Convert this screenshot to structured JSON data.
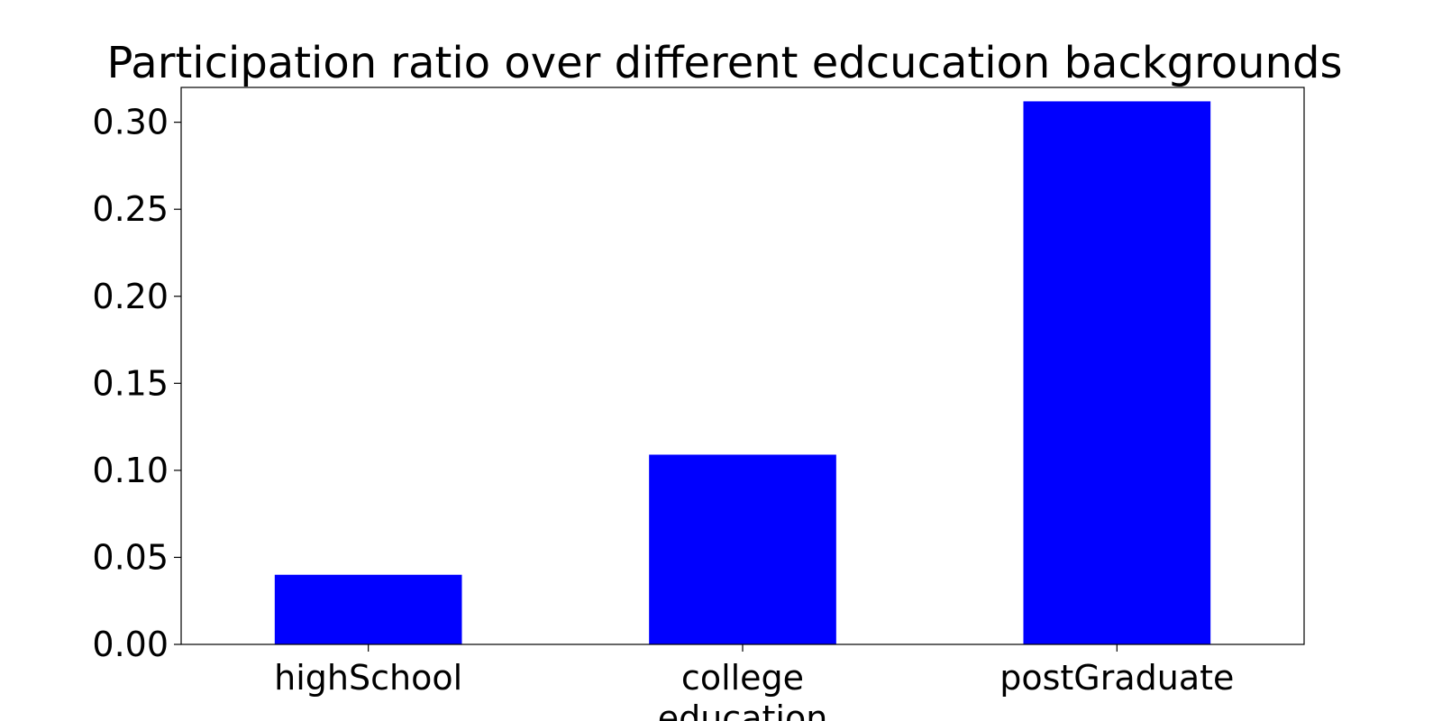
{
  "chart_data": {
    "type": "bar",
    "title": "Participation ratio over different edcucation backgrounds",
    "xlabel": "",
    "ylabel": "",
    "categories": [
      [
        "highSchool"
      ],
      [
        "college",
        "education"
      ],
      [
        "postGraduate"
      ]
    ],
    "values": [
      0.04,
      0.109,
      0.312
    ],
    "ylim": [
      0,
      0.32
    ],
    "yticks": [
      0.0,
      0.05,
      0.1,
      0.15,
      0.2,
      0.25,
      0.3
    ],
    "ytick_labels": [
      "0.00",
      "0.05",
      "0.10",
      "0.15",
      "0.20",
      "0.25",
      "0.30"
    ],
    "bar_color": "#0000ff",
    "grid": false,
    "legend": "none"
  }
}
